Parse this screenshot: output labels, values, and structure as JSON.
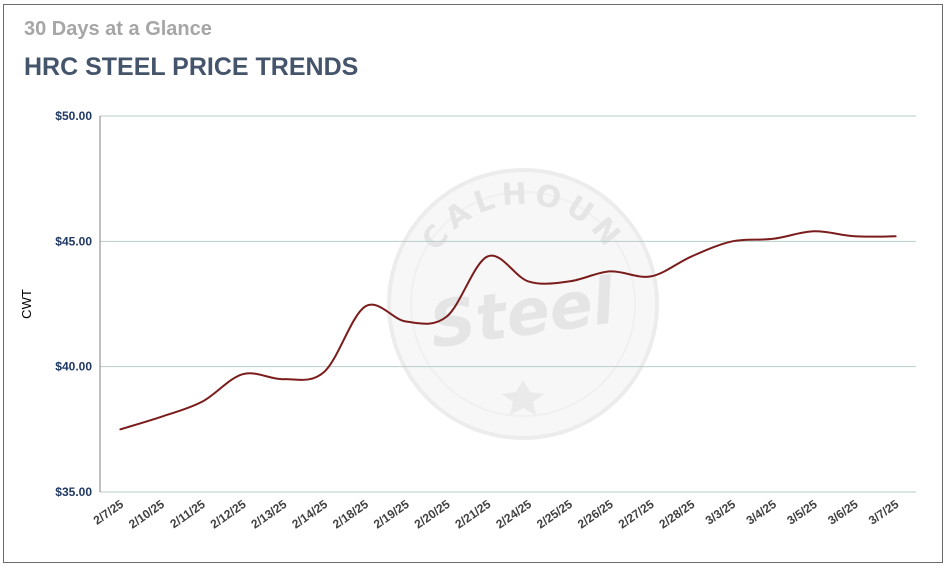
{
  "header": {
    "subtitle": "30 Days at a Glance",
    "title": "HRC STEEL PRICE TRENDS"
  },
  "watermark": {
    "top_text": "CALHOUN",
    "script_text": "Steel",
    "color": "#d0d0d0"
  },
  "colors": {
    "line": "#7b1c1c",
    "grid": "#b7cdc9",
    "axis": "#7f7f7f",
    "title": "#44546a",
    "subtitle": "#a6a6a6",
    "ytick": "#1f3864",
    "xtick": "#404040"
  },
  "chart_data": {
    "type": "line",
    "title": "HRC STEEL PRICE TRENDS",
    "subtitle": "30 Days at a Glance",
    "xlabel": "",
    "ylabel": "CWT",
    "ylim": [
      35,
      50
    ],
    "yticks": [
      35,
      40,
      45,
      50
    ],
    "ytick_labels": [
      "$35.00",
      "$40.00",
      "$45.00",
      "$50.00"
    ],
    "grid": true,
    "legend": "none",
    "categories": [
      "2/7/25",
      "2/10/25",
      "2/11/25",
      "2/12/25",
      "2/13/25",
      "2/14/25",
      "2/18/25",
      "2/19/25",
      "2/20/25",
      "2/21/25",
      "2/24/25",
      "2/25/25",
      "2/26/25",
      "2/27/25",
      "2/28/25",
      "3/3/25",
      "3/4/25",
      "3/5/25",
      "3/6/25",
      "3/7/25"
    ],
    "values": [
      37.5,
      38.0,
      38.6,
      39.7,
      39.5,
      39.8,
      42.4,
      41.8,
      42.0,
      44.4,
      43.4,
      43.4,
      43.8,
      43.6,
      44.4,
      45.0,
      45.1,
      45.4,
      45.2,
      45.2
    ]
  }
}
